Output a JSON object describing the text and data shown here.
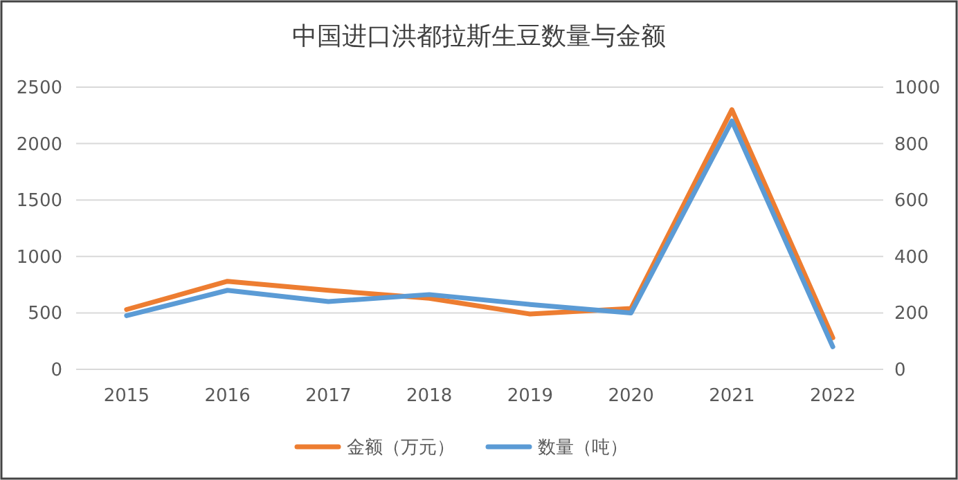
{
  "chart_data": {
    "type": "line",
    "title": "中国进口洪都拉斯生豆数量与金额",
    "categories": [
      "2015",
      "2016",
      "2017",
      "2018",
      "2019",
      "2020",
      "2021",
      "2022"
    ],
    "series": [
      {
        "name": "金额（万元）",
        "color": "#ed7d31",
        "values": [
          530,
          780,
          700,
          630,
          490,
          540,
          2300,
          280
        ]
      },
      {
        "name": "数量（吨）",
        "color": "#5b9bd5",
        "axis": "y2",
        "values": [
          190,
          280,
          240,
          265,
          230,
          200,
          880,
          80
        ]
      }
    ],
    "ylim": [
      0,
      2500
    ],
    "yticks": [
      0,
      500,
      1000,
      1500,
      2000,
      2500
    ],
    "y2lim": [
      0,
      1000
    ],
    "y2ticks": [
      0,
      200,
      400,
      600,
      800,
      1000
    ],
    "grid": "y",
    "legend": "bottom",
    "marker": "none",
    "line_style": "solid"
  }
}
